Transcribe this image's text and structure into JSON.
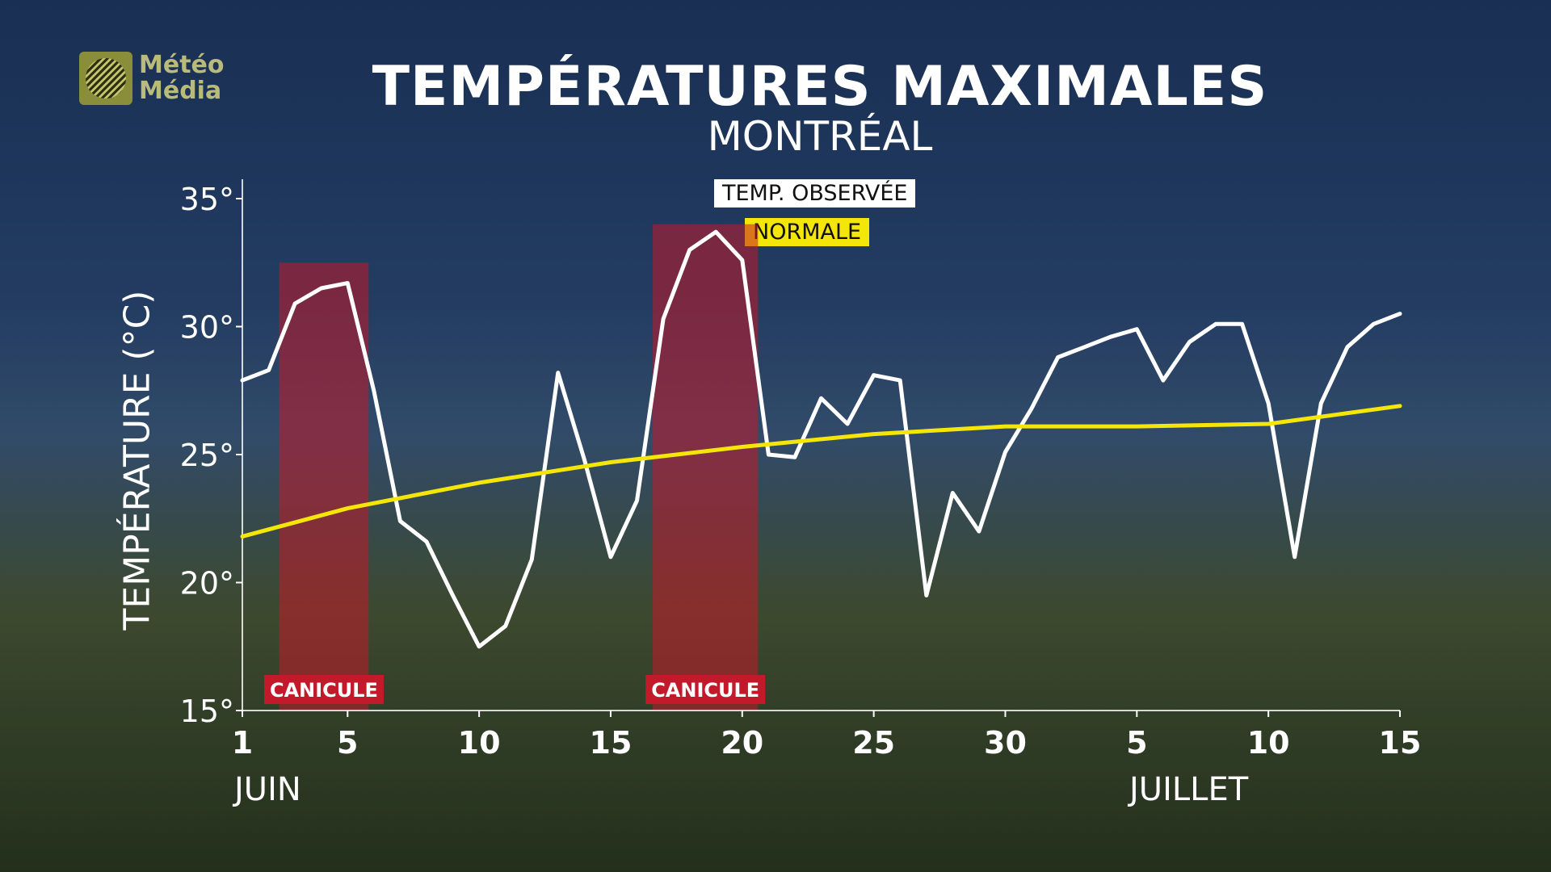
{
  "logo": {
    "line1": "Météo",
    "line2": "Média"
  },
  "chart_data": {
    "type": "line",
    "title": "TEMPÉRATURES MAXIMALES",
    "subtitle": "MONTRÉAL",
    "ylabel": "TEMPÉRATURE (°C)",
    "ylim": [
      15,
      35
    ],
    "yticks": [
      15,
      20,
      25,
      30,
      35
    ],
    "ytick_labels": [
      "15°",
      "20°",
      "25°",
      "30°",
      "35°"
    ],
    "xticks": [
      {
        "day": 1,
        "label": "1"
      },
      {
        "day": 5,
        "label": "5"
      },
      {
        "day": 10,
        "label": "10"
      },
      {
        "day": 15,
        "label": "15"
      },
      {
        "day": 20,
        "label": "20"
      },
      {
        "day": 25,
        "label": "25"
      },
      {
        "day": 30,
        "label": "30"
      },
      {
        "day": 35,
        "label": "5"
      },
      {
        "day": 40,
        "label": "10"
      },
      {
        "day": 45,
        "label": "15"
      }
    ],
    "months": [
      "JUIN",
      "JUILLET"
    ],
    "legend": [
      "TEMP. OBSERVÉE",
      "NORMALE"
    ],
    "colors": {
      "observed": "#ffffff",
      "normal": "#f5e60a",
      "canicule": "#c21a2a"
    },
    "canicule": [
      {
        "from": 2.4,
        "to": 5.8,
        "ymax": 32.5,
        "label": "CANICULE"
      },
      {
        "from": 16.6,
        "to": 20.6,
        "ymax": 34.0,
        "label": "CANICULE"
      }
    ],
    "series": [
      {
        "name": "TEMP. OBSERVÉE",
        "x": [
          1,
          2,
          3,
          4,
          5,
          6,
          7,
          8,
          9,
          10,
          11,
          12,
          13,
          14,
          15,
          16,
          17,
          18,
          19,
          20,
          21,
          22,
          23,
          24,
          25,
          26,
          27,
          28,
          29,
          30,
          31,
          32,
          33,
          34,
          35,
          36,
          37,
          38,
          39,
          40,
          41,
          42,
          43,
          44,
          45
        ],
        "y": [
          27.9,
          28.3,
          30.9,
          31.5,
          31.7,
          27.5,
          22.4,
          21.6,
          19.5,
          17.5,
          18.3,
          20.9,
          28.2,
          24.8,
          21.0,
          23.2,
          30.3,
          33.0,
          33.7,
          32.6,
          25.0,
          24.9,
          27.2,
          26.2,
          28.1,
          27.9,
          19.5,
          23.5,
          22.0,
          25.1,
          26.8,
          28.8,
          29.2,
          29.6,
          29.9,
          27.9,
          29.4,
          30.1,
          30.1,
          27.0,
          21.0,
          27.0,
          29.2,
          30.1,
          30.5
        ]
      },
      {
        "name": "NORMALE",
        "x": [
          1,
          5,
          10,
          15,
          20,
          25,
          30,
          35,
          40,
          45
        ],
        "y": [
          21.8,
          22.9,
          23.9,
          24.7,
          25.3,
          25.8,
          26.1,
          26.1,
          26.2,
          26.9
        ]
      }
    ]
  }
}
